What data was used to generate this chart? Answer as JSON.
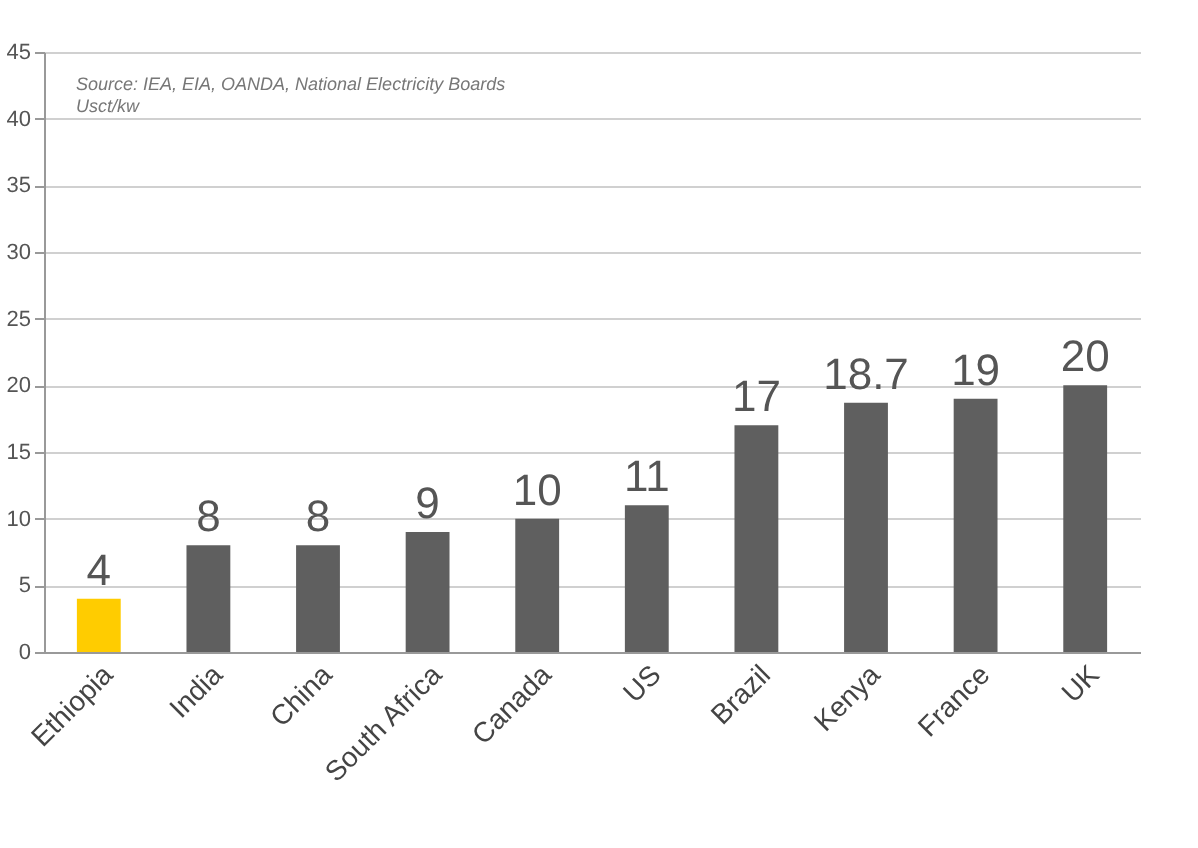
{
  "chart_data": {
    "type": "bar",
    "categories": [
      "Ethiopia",
      "India",
      "China",
      "South Africa",
      "Canada",
      "US",
      "Brazil",
      "Kenya",
      "France",
      "UK"
    ],
    "values": [
      4,
      8,
      8,
      9,
      10,
      11,
      17,
      18.7,
      19,
      20
    ],
    "colors": [
      "#ffcc00",
      "#5f5f5f",
      "#5f5f5f",
      "#5f5f5f",
      "#5f5f5f",
      "#5f5f5f",
      "#5f5f5f",
      "#5f5f5f",
      "#5f5f5f",
      "#5f5f5f"
    ],
    "ylim": [
      0,
      45
    ],
    "yticks": [
      0,
      5,
      10,
      15,
      20,
      25,
      30,
      35,
      40,
      45
    ],
    "grid": "y",
    "data_labels": true,
    "annotations": [
      "Source: IEA, EIA, OANDA, National Electricity Boards",
      "Usct/kw"
    ]
  }
}
